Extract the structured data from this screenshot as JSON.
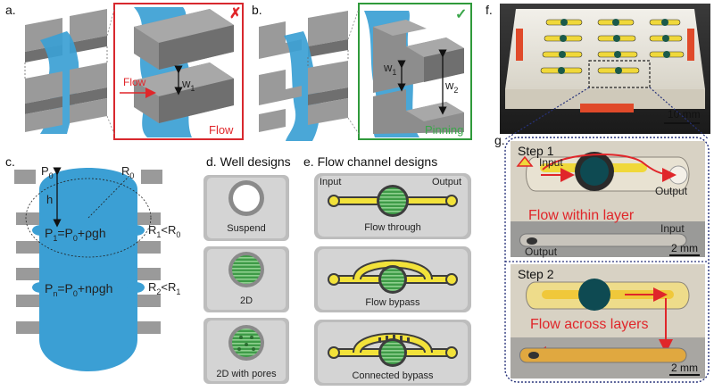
{
  "panels": {
    "a": {
      "letter": "a.",
      "flow_arrow_label": "Flow",
      "w1_label": "w",
      "w1_sub": "1",
      "caption": "Flow",
      "mark": "✗",
      "mark_color": "#d42020"
    },
    "b": {
      "letter": "b.",
      "w1_label": "w",
      "w1_sub": "1",
      "w2_label": "w",
      "w2_sub": "2",
      "caption": "Pinning",
      "mark": "✓",
      "mark_color": "#2f9a3b"
    },
    "c": {
      "letter": "c.",
      "p0": "P",
      "p0_sub": "0",
      "r0": "R",
      "r0_sub": "0",
      "h": "h",
      "eq1_a": "P",
      "eq1_a_sub": "1",
      "eq1_b": "=P",
      "eq1_b_sub": "0",
      "eq1_c": "+ρgh",
      "r1r0_a": "R",
      "r1r0_a_sub": "1",
      "r1r0_b": "<R",
      "r1r0_b_sub": "0",
      "eqn_a": "P",
      "eqn_a_sub": "n",
      "eqn_b": "=P",
      "eqn_b_sub": "0",
      "eqn_c": "+nρgh",
      "r2r1_a": "R",
      "r2r1_a_sub": "2",
      "r2r1_b": "<R",
      "r2r1_b_sub": "1"
    },
    "d": {
      "title": "d. Well designs",
      "items": [
        "Suspend",
        "2D",
        "2D with pores"
      ]
    },
    "e": {
      "title": "e. Flow channel designs",
      "input": "Input",
      "output": "Output",
      "items": [
        "Flow through",
        "Flow bypass",
        "Connected bypass"
      ]
    },
    "f": {
      "letter": "f.",
      "scale": "10 mm"
    },
    "g": {
      "letter": "g.",
      "step1": "Step 1",
      "step1_input": "Input",
      "step1_output": "Output",
      "step1_caption": "Flow within layer",
      "step1_input2": "Input",
      "step1_output2": "Output",
      "scale1": "2 mm",
      "step2": "Step 2",
      "step2_caption": "Flow across layers",
      "scale2": "2 mm"
    }
  },
  "colors": {
    "fluid": "#3b9fd4",
    "block_top": "#9a9a9a",
    "block_side": "#6f6f6f",
    "red_box": "#d8282e",
    "green_box": "#2f9a3b",
    "yellow": "#f2e23a",
    "arrow_red": "#e0262a",
    "photo_border": "#27327a"
  }
}
